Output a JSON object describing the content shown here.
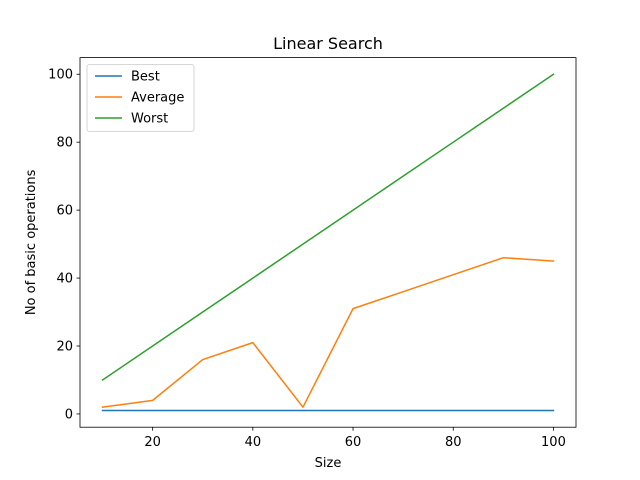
{
  "chart_data": {
    "type": "line",
    "title": "Linear Search",
    "xlabel": "Size",
    "ylabel": "No of basic operations",
    "x": [
      10,
      20,
      30,
      40,
      50,
      60,
      70,
      80,
      90,
      100
    ],
    "xlim": [
      5.5,
      104.5
    ],
    "ylim": [
      -3.9,
      104.9
    ],
    "xticks": [
      20,
      40,
      60,
      80,
      100
    ],
    "yticks": [
      0,
      20,
      40,
      60,
      80,
      100
    ],
    "grid": false,
    "legend_position": "top-left",
    "series": [
      {
        "name": "Best",
        "color": "#1f77b4",
        "values": [
          1,
          1,
          1,
          1,
          1,
          1,
          1,
          1,
          1,
          1
        ]
      },
      {
        "name": "Average",
        "color": "#ff7f0e",
        "values": [
          2,
          4,
          16,
          21,
          2,
          31,
          36,
          41,
          46,
          45
        ]
      },
      {
        "name": "Worst",
        "color": "#2ca02c",
        "values": [
          10,
          20,
          30,
          40,
          50,
          60,
          70,
          80,
          90,
          100
        ]
      }
    ]
  }
}
